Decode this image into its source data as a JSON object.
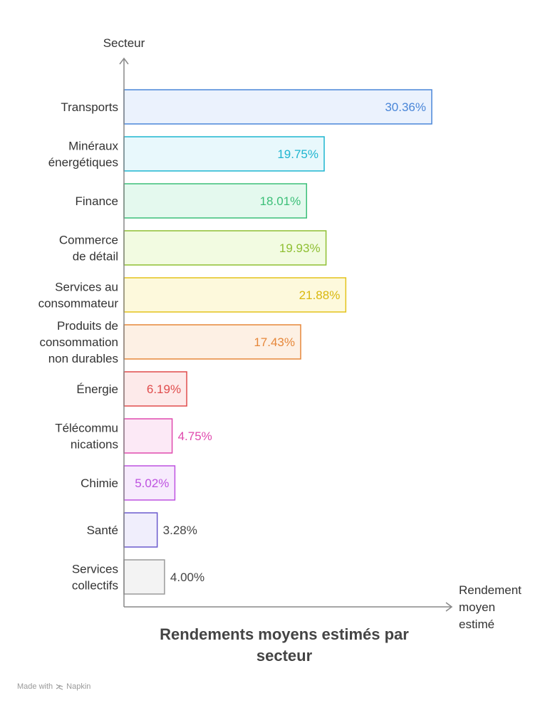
{
  "chart_data": {
    "type": "bar",
    "orientation": "horizontal",
    "title": "Rendements moyens estimés par secteur",
    "ylabel": "Secteur",
    "xlabel": "Rendement moyen estimé",
    "xlim": [
      0,
      30.36
    ],
    "grid": false,
    "categories": [
      "Transports",
      "Minéraux énergétiques",
      "Finance",
      "Commerce de détail",
      "Services au consommateur",
      "Produits de consommation non durables",
      "Énergie",
      "Télécommunications",
      "Chimie",
      "Santé",
      "Services collectifs"
    ],
    "category_lines": [
      [
        "Transports"
      ],
      [
        "Minéraux",
        "énergétiques"
      ],
      [
        "Finance"
      ],
      [
        "Commerce",
        "de détail"
      ],
      [
        "Services au",
        "consommateur"
      ],
      [
        "Produits de",
        "consommation",
        "non durables"
      ],
      [
        "Énergie"
      ],
      [
        "Télécommu",
        "nications"
      ],
      [
        "Chimie"
      ],
      [
        "Santé"
      ],
      [
        "Services",
        "collectifs"
      ]
    ],
    "values": [
      30.36,
      19.75,
      18.01,
      19.93,
      21.88,
      17.43,
      6.19,
      4.75,
      5.02,
      3.28,
      4.0
    ],
    "value_labels": [
      "30.36%",
      "19.75%",
      "18.01%",
      "19.93%",
      "21.88%",
      "17.43%",
      "6.19%",
      "4.75%",
      "5.02%",
      "3.28%",
      "4.00%"
    ],
    "colors": [
      {
        "stroke": "#4a86d8",
        "fill": "#ebf2fd",
        "text": "#4a86d8"
      },
      {
        "stroke": "#1fb5d0",
        "fill": "#e8f8fc",
        "text": "#1fb5d0"
      },
      {
        "stroke": "#3bbf78",
        "fill": "#e4f9ee",
        "text": "#3bbf78"
      },
      {
        "stroke": "#8fbf33",
        "fill": "#f2fbe1",
        "text": "#8fbf33"
      },
      {
        "stroke": "#e3c31b",
        "fill": "#fdf9dc",
        "text": "#d9b80d"
      },
      {
        "stroke": "#e6873a",
        "fill": "#fdf0e4",
        "text": "#e6873a"
      },
      {
        "stroke": "#e04c4c",
        "fill": "#fdeaea",
        "text": "#e04c4c"
      },
      {
        "stroke": "#e04aae",
        "fill": "#fce9f6",
        "text": "#e04aae"
      },
      {
        "stroke": "#be52e0",
        "fill": "#f7ebfd",
        "text": "#be52e0"
      },
      {
        "stroke": "#6a5acd",
        "fill": "#f0eefc",
        "text": "#444444"
      },
      {
        "stroke": "#9a9a9a",
        "fill": "#f3f3f3",
        "text": "#444444"
      }
    ]
  },
  "footer": {
    "made_with": "Made with",
    "brand": "Napkin"
  }
}
